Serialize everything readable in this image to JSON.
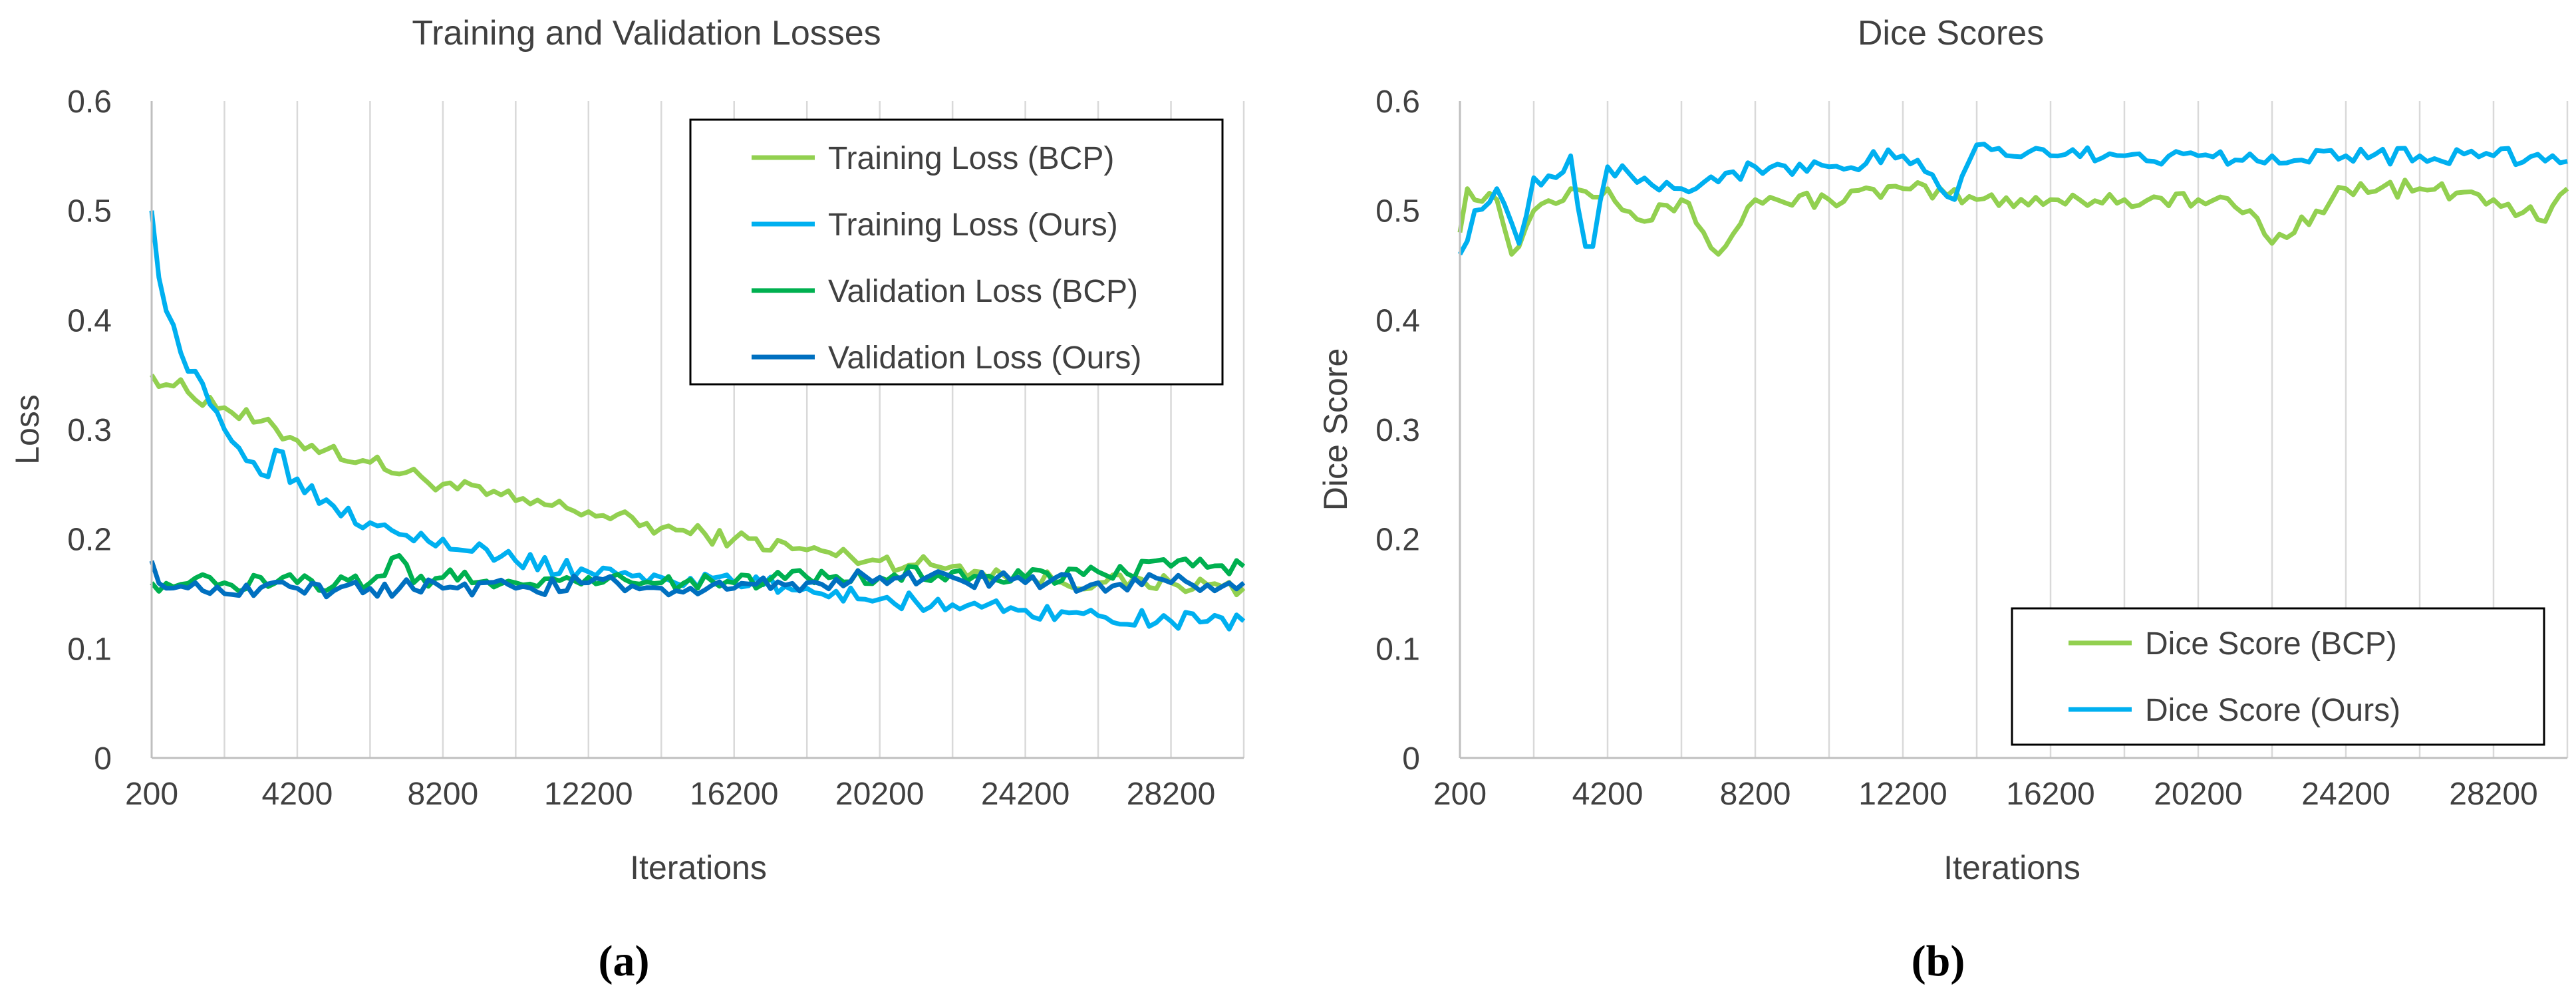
{
  "chart_data": [
    {
      "type": "line",
      "panel_label": "(a)",
      "title": "Training and Validation Losses",
      "xlabel": "Iterations",
      "ylabel": "Loss",
      "xlim": [
        200,
        30200
      ],
      "ylim": [
        0,
        0.6
      ],
      "xticks": [
        200,
        4200,
        8200,
        12200,
        16200,
        20200,
        24200,
        28200
      ],
      "yticks": [
        0,
        0.1,
        0.2,
        0.3,
        0.4,
        0.5,
        0.6
      ],
      "ytick_labels": [
        "0",
        "0.1",
        "0.2",
        "0.3",
        "0.4",
        "0.5",
        "0.6"
      ],
      "grid": "vertical",
      "legend_position": "top-right",
      "series": [
        {
          "name": "Training Loss (BCP)",
          "color": "#92d050",
          "x": [
            200,
            2200,
            4200,
            6200,
            8200,
            10200,
            12200,
            14200,
            16200,
            18200,
            20200,
            22200,
            24200,
            26200,
            28200,
            30200
          ],
          "values": [
            0.35,
            0.32,
            0.29,
            0.27,
            0.25,
            0.235,
            0.225,
            0.21,
            0.2,
            0.19,
            0.18,
            0.175,
            0.165,
            0.16,
            0.16,
            0.155
          ]
        },
        {
          "name": "Training Loss (Ours)",
          "color": "#00b0f0",
          "x": [
            200,
            500,
            1000,
            1500,
            2200,
            3000,
            3500,
            3700,
            3900,
            4200,
            5200,
            6200,
            8200,
            10200,
            12200,
            14200,
            16200,
            18200,
            20200,
            22200,
            24200,
            26200,
            28200,
            30200
          ],
          "values": [
            0.5,
            0.42,
            0.37,
            0.34,
            0.3,
            0.27,
            0.26,
            0.295,
            0.26,
            0.255,
            0.23,
            0.215,
            0.2,
            0.18,
            0.17,
            0.165,
            0.16,
            0.155,
            0.145,
            0.14,
            0.135,
            0.13,
            0.125,
            0.125
          ]
        },
        {
          "name": "Validation Loss (BCP)",
          "color": "#00b050",
          "x": [
            200,
            2200,
            4200,
            6200,
            7000,
            7400,
            8200,
            10200,
            12200,
            14200,
            16200,
            18200,
            20200,
            22200,
            24200,
            26200,
            28200,
            30200
          ],
          "values": [
            0.16,
            0.16,
            0.16,
            0.16,
            0.185,
            0.16,
            0.165,
            0.16,
            0.165,
            0.16,
            0.16,
            0.165,
            0.165,
            0.17,
            0.165,
            0.17,
            0.175,
            0.175
          ]
        },
        {
          "name": "Validation Loss (Ours)",
          "color": "#0070c0",
          "x": [
            200,
            600,
            2200,
            4200,
            6200,
            8200,
            10200,
            12200,
            14200,
            16200,
            18200,
            20200,
            22200,
            24200,
            26200,
            28200,
            30200
          ],
          "values": [
            0.18,
            0.155,
            0.15,
            0.155,
            0.155,
            0.155,
            0.155,
            0.16,
            0.155,
            0.155,
            0.16,
            0.165,
            0.165,
            0.16,
            0.16,
            0.16,
            0.16
          ]
        }
      ]
    },
    {
      "type": "line",
      "panel_label": "(b)",
      "title": "Dice Scores",
      "xlabel": "Iterations",
      "ylabel": "Dice Score",
      "xlim": [
        200,
        30200
      ],
      "ylim": [
        0,
        0.6
      ],
      "xticks": [
        200,
        4200,
        8200,
        12200,
        16200,
        20200,
        24200,
        28200
      ],
      "yticks": [
        0,
        0.1,
        0.2,
        0.3,
        0.4,
        0.5,
        0.6
      ],
      "ytick_labels": [
        "0",
        "0.1",
        "0.2",
        "0.3",
        "0.4",
        "0.5",
        "0.6"
      ],
      "grid": "vertical",
      "legend_position": "bottom-right",
      "series": [
        {
          "name": "Dice Score (BCP)",
          "color": "#92d050",
          "x": [
            200,
            400,
            1200,
            1600,
            2200,
            3200,
            4200,
            5200,
            6200,
            6800,
            7200,
            8200,
            10200,
            12200,
            14200,
            16200,
            18200,
            20200,
            21600,
            22200,
            24200,
            26200,
            28200,
            29600,
            30200
          ],
          "values": [
            0.48,
            0.52,
            0.51,
            0.46,
            0.5,
            0.52,
            0.52,
            0.49,
            0.51,
            0.48,
            0.46,
            0.51,
            0.51,
            0.52,
            0.51,
            0.51,
            0.51,
            0.51,
            0.5,
            0.47,
            0.52,
            0.52,
            0.51,
            0.49,
            0.52
          ]
        },
        {
          "name": "Dice Score (Ours)",
          "color": "#00b0f0",
          "x": [
            200,
            600,
            1200,
            1800,
            2200,
            2800,
            3200,
            3700,
            4200,
            6200,
            8200,
            10200,
            12200,
            13600,
            14200,
            16200,
            18200,
            20200,
            22200,
            24200,
            26200,
            28200,
            30200
          ],
          "values": [
            0.46,
            0.5,
            0.52,
            0.47,
            0.53,
            0.53,
            0.55,
            0.45,
            0.54,
            0.52,
            0.54,
            0.54,
            0.55,
            0.51,
            0.56,
            0.55,
            0.55,
            0.55,
            0.55,
            0.55,
            0.55,
            0.55,
            0.545
          ]
        }
      ]
    }
  ]
}
